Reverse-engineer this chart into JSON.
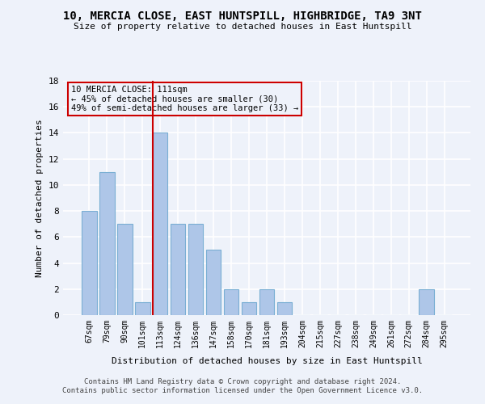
{
  "title": "10, MERCIA CLOSE, EAST HUNTSPILL, HIGHBRIDGE, TA9 3NT",
  "subtitle": "Size of property relative to detached houses in East Huntspill",
  "xlabel": "Distribution of detached houses by size in East Huntspill",
  "ylabel": "Number of detached properties",
  "categories": [
    "67sqm",
    "79sqm",
    "90sqm",
    "101sqm",
    "113sqm",
    "124sqm",
    "136sqm",
    "147sqm",
    "158sqm",
    "170sqm",
    "181sqm",
    "193sqm",
    "204sqm",
    "215sqm",
    "227sqm",
    "238sqm",
    "249sqm",
    "261sqm",
    "272sqm",
    "284sqm",
    "295sqm"
  ],
  "values": [
    8,
    11,
    7,
    1,
    14,
    7,
    7,
    5,
    2,
    1,
    2,
    1,
    0,
    0,
    0,
    0,
    0,
    0,
    0,
    2,
    0
  ],
  "bar_color": "#aec6e8",
  "bar_edge_color": "#7aafd4",
  "vline_color": "#cc0000",
  "vline_pos": 3.575,
  "annotation_lines": [
    "10 MERCIA CLOSE: 111sqm",
    "← 45% of detached houses are smaller (30)",
    "49% of semi-detached houses are larger (33) →"
  ],
  "annotation_box_color": "#cc0000",
  "ylim": [
    0,
    18
  ],
  "yticks": [
    0,
    2,
    4,
    6,
    8,
    10,
    12,
    14,
    16,
    18
  ],
  "background_color": "#eef2fa",
  "grid_color": "#ffffff",
  "footer": "Contains HM Land Registry data © Crown copyright and database right 2024.\nContains public sector information licensed under the Open Government Licence v3.0."
}
